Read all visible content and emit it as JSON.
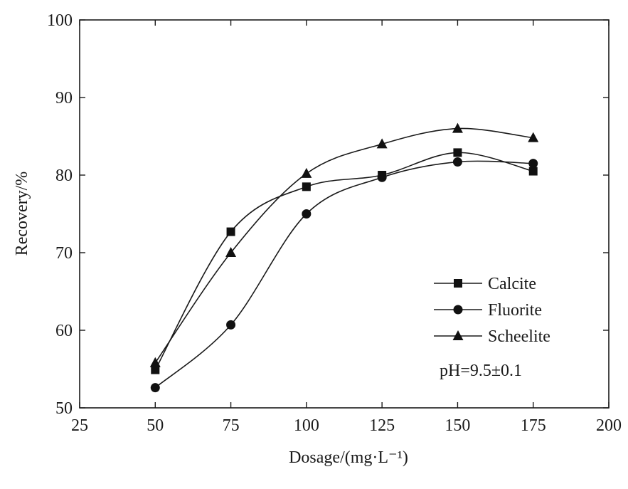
{
  "chart_data": {
    "type": "line",
    "title": "",
    "xlabel": "Dosage/(mg·L⁻¹)",
    "ylabel": "Recovery/%",
    "xlim": [
      25,
      200
    ],
    "ylim": [
      50,
      100
    ],
    "xticks": [
      25,
      50,
      75,
      100,
      125,
      150,
      175,
      200
    ],
    "yticks": [
      50,
      60,
      70,
      80,
      90,
      100
    ],
    "grid": false,
    "legend_position": "lower-right",
    "x": [
      50,
      75,
      100,
      125,
      150,
      175
    ],
    "series": [
      {
        "name": "Calcite",
        "marker": "square",
        "values": [
          54.9,
          72.7,
          78.5,
          80.0,
          82.9,
          80.5
        ]
      },
      {
        "name": "Fluorite",
        "marker": "circle",
        "values": [
          52.6,
          60.7,
          75.0,
          79.7,
          81.7,
          81.5
        ]
      },
      {
        "name": "Scheelite",
        "marker": "triangle",
        "values": [
          55.8,
          70.0,
          80.2,
          84.0,
          86.0,
          84.8
        ]
      }
    ],
    "annotation": "pH=9.5±0.1",
    "colors": {
      "line": "#1a1a1a",
      "marker": "#111111"
    }
  }
}
